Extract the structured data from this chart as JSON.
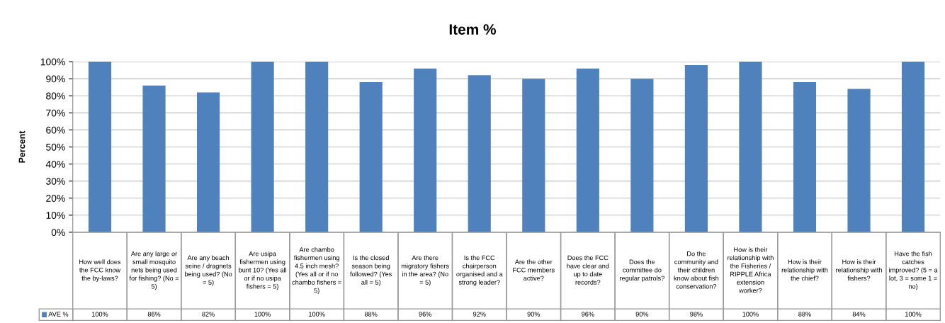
{
  "chart_data": {
    "type": "bar",
    "title": "Item %",
    "ylabel": "Percent",
    "categories": [
      "How well does the FCC know the by-laws?",
      "Are any large or small mosquito nets being used for fishing? (No = 5)",
      "Are any beach seine / dragnets being used? (No = 5)",
      "Are usipa fishermen using bunt 10? (Yes all or if no usipa fishers = 5)",
      "Are chambo fishermen using 4.5 inch mesh? (Yes all or if no chambo fishers = 5)",
      "Is the closed season being followed? (Yes all = 5)",
      "Are there migratory fishers in the area? (No = 5)",
      "Is the FCC chairperson organised and a strong leader?",
      "Are the other FCC members active?",
      "Does the FCC have clear and up to date records?",
      "Does the committee do regular patrols?",
      "Do the community and their children know about fish conservation?",
      "How is their relationship with the Fisheries / RIPPLE Africa extension worker?",
      "How is their relationship with the chief?",
      "How is their relationship with fishers?",
      "Have the fish catches improved? (5 = a lot, 3 = some 1 = no)"
    ],
    "series": [
      {
        "name": "AVE %",
        "color": "#4f81bd",
        "values": [
          100,
          86,
          82,
          100,
          100,
          88,
          96,
          92,
          90,
          96,
          90,
          98,
          100,
          88,
          84,
          100
        ],
        "value_labels": [
          "100%",
          "86%",
          "82%",
          "100%",
          "100%",
          "88%",
          "96%",
          "92%",
          "90%",
          "96%",
          "90%",
          "98%",
          "100%",
          "88%",
          "84%",
          "100%"
        ]
      }
    ],
    "ylim": [
      0,
      100
    ],
    "yticks": [
      {
        "value": 0,
        "label": "0%"
      },
      {
        "value": 10,
        "label": "10%"
      },
      {
        "value": 20,
        "label": "20%"
      },
      {
        "value": 30,
        "label": "30%"
      },
      {
        "value": 40,
        "label": "40%"
      },
      {
        "value": 50,
        "label": "50%"
      },
      {
        "value": 60,
        "label": "60%"
      },
      {
        "value": 70,
        "label": "70%"
      },
      {
        "value": 80,
        "label": "80%"
      },
      {
        "value": 90,
        "label": "90%"
      },
      {
        "value": 100,
        "label": "100%"
      }
    ],
    "grid": "y",
    "legend": "bottom left"
  }
}
